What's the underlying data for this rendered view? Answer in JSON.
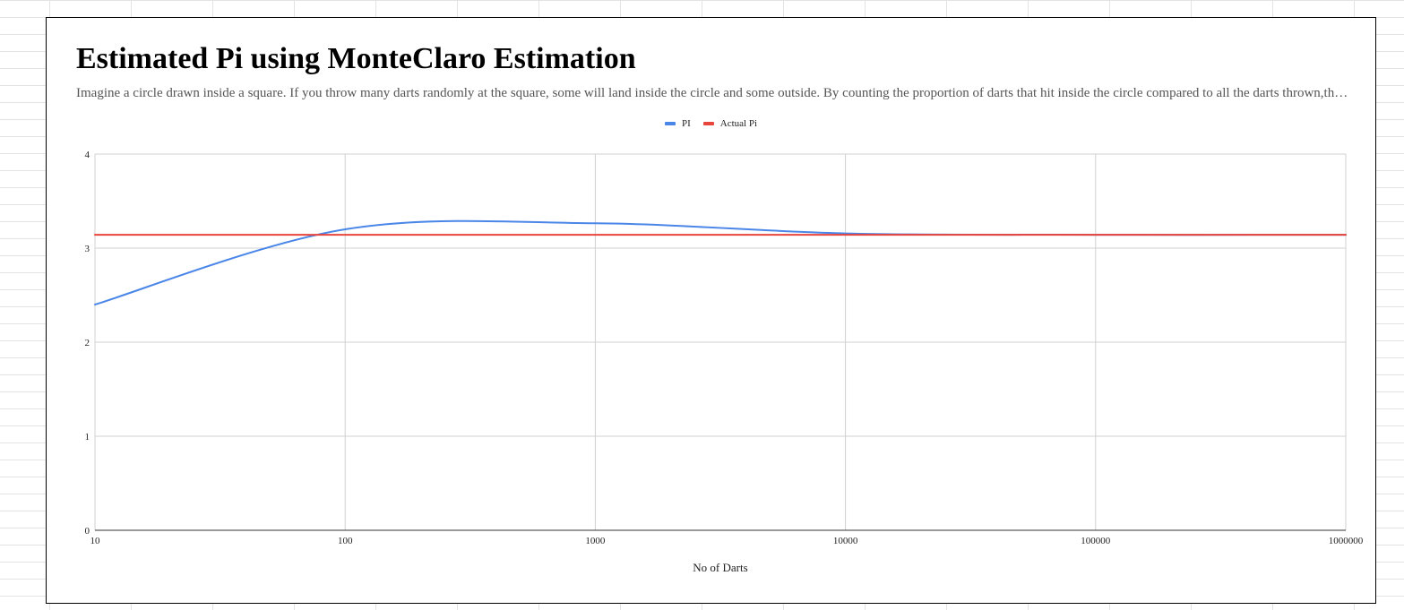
{
  "chart_data": {
    "type": "line",
    "title": "Estimated Pi using MonteClaro Estimation",
    "subtitle": "Imagine a circle drawn inside a square. If you throw many darts randomly at the square, some will land inside the circle and some outside. By counting the proportion of darts that hit inside the circle compared to all the darts thrown,then multip…",
    "xlabel": "No of Darts",
    "ylabel": "",
    "x_scale": "log",
    "xlim": [
      10,
      1000000
    ],
    "ylim": [
      0,
      4
    ],
    "x_ticks": [
      "10",
      "100",
      "1000",
      "10000",
      "100000",
      "1000000"
    ],
    "y_ticks": [
      "0",
      "1",
      "2",
      "3",
      "4"
    ],
    "grid": true,
    "legend_position": "top",
    "series": [
      {
        "name": "PI",
        "color": "#4a86e8",
        "x": [
          10,
          100,
          1000,
          10000,
          100000,
          1000000
        ],
        "y": [
          2.4,
          3.2,
          3.264,
          3.156,
          3.142,
          3.1417
        ]
      },
      {
        "name": "Actual Pi",
        "color": "#e8453c",
        "x": [
          10,
          100,
          1000,
          10000,
          100000,
          1000000
        ],
        "y": [
          3.1416,
          3.1416,
          3.1416,
          3.1416,
          3.1416,
          3.1416
        ]
      }
    ]
  }
}
